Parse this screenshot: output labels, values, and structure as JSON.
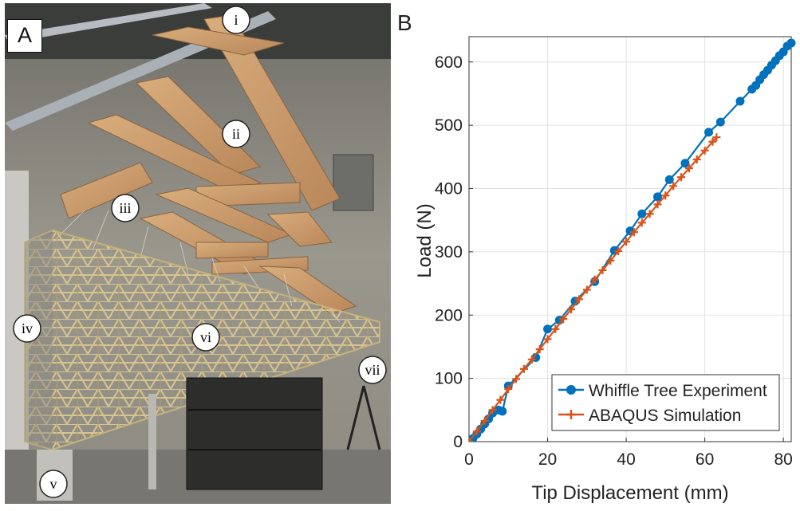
{
  "panels": {
    "photo_tag": "A",
    "chart_tag": "B"
  },
  "photo_callouts": [
    "i",
    "ii",
    "iii",
    "iv",
    "v",
    "vi",
    "vii"
  ],
  "chart_data": {
    "type": "line",
    "xlabel": "Tip Displacement (mm)",
    "ylabel": "Load (N)",
    "xlim": [
      0,
      82
    ],
    "ylim": [
      0,
      640
    ],
    "xticks": [
      0,
      20,
      40,
      60,
      80
    ],
    "yticks": [
      0,
      100,
      200,
      300,
      400,
      500,
      600
    ],
    "grid": true,
    "legend_position": "bottom-right",
    "series": [
      {
        "name": "Whiffle Tree Experiment",
        "color": "#0072BD",
        "marker": "circle",
        "points": [
          [
            0,
            0
          ],
          [
            1,
            5
          ],
          [
            2,
            12
          ],
          [
            3,
            20
          ],
          [
            4,
            28
          ],
          [
            5,
            36
          ],
          [
            6,
            45
          ],
          [
            7.5,
            50
          ],
          [
            8.5,
            48
          ],
          [
            10,
            88
          ],
          [
            17,
            133
          ],
          [
            20,
            178
          ],
          [
            23,
            192
          ],
          [
            27,
            222
          ],
          [
            32,
            253
          ],
          [
            37,
            302
          ],
          [
            41,
            333
          ],
          [
            44,
            360
          ],
          [
            48,
            387
          ],
          [
            51,
            414
          ],
          [
            55,
            440
          ],
          [
            61,
            489
          ],
          [
            64,
            505
          ],
          [
            69,
            538
          ],
          [
            72,
            557
          ],
          [
            73,
            563
          ],
          [
            74,
            572
          ],
          [
            75,
            580
          ],
          [
            76,
            587
          ],
          [
            77,
            595
          ],
          [
            78,
            602
          ],
          [
            79,
            610
          ],
          [
            80,
            616
          ],
          [
            81,
            625
          ],
          [
            82,
            630
          ]
        ]
      },
      {
        "name": "ABAQUS Simulation",
        "color": "#D95319",
        "marker": "plus",
        "points": [
          [
            0,
            0
          ],
          [
            2,
            16
          ],
          [
            4,
            33
          ],
          [
            6,
            50
          ],
          [
            8,
            66
          ],
          [
            10,
            83
          ],
          [
            12,
            99
          ],
          [
            14,
            115
          ],
          [
            16,
            130
          ],
          [
            18,
            146
          ],
          [
            20,
            162
          ],
          [
            22,
            178
          ],
          [
            24,
            194
          ],
          [
            26,
            209
          ],
          [
            28,
            225
          ],
          [
            30,
            240
          ],
          [
            32,
            256
          ],
          [
            34,
            271
          ],
          [
            36,
            286
          ],
          [
            38,
            301
          ],
          [
            40,
            316
          ],
          [
            42,
            331
          ],
          [
            44,
            346
          ],
          [
            46,
            360
          ],
          [
            48,
            375
          ],
          [
            50,
            389
          ],
          [
            52,
            404
          ],
          [
            54,
            418
          ],
          [
            56,
            432
          ],
          [
            58,
            446
          ],
          [
            60,
            460
          ],
          [
            62,
            474
          ],
          [
            63,
            481
          ]
        ]
      }
    ]
  }
}
